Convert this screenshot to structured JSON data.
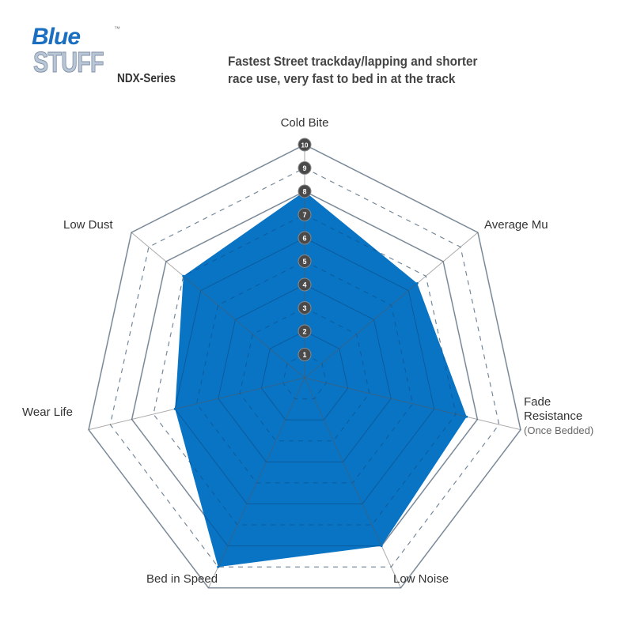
{
  "header": {
    "logo_text": "BlueStuff",
    "logo_tm": "™",
    "series": "NDX-Series",
    "description_lines": [
      "Fastest Street trackday/lapping and shorter",
      "race use, very fast to bed in at the track"
    ]
  },
  "chart_data": {
    "type": "radar",
    "axes": [
      "Cold Bite",
      "Average Mu",
      "Fade Resistance",
      "Low Noise",
      "Bed in Speed",
      "Wear Life",
      "Low Dust"
    ],
    "axis_sublabels": {
      "Fade Resistance": "(Once Bedded)"
    },
    "values": [
      8,
      6.5,
      7.5,
      8,
      9,
      6,
      7
    ],
    "scale_min": 0,
    "scale_max": 10,
    "scale_ticks": [
      1,
      2,
      3,
      4,
      5,
      6,
      7,
      8,
      9,
      10
    ],
    "fill_color": "#0a74c4",
    "grid": true
  }
}
